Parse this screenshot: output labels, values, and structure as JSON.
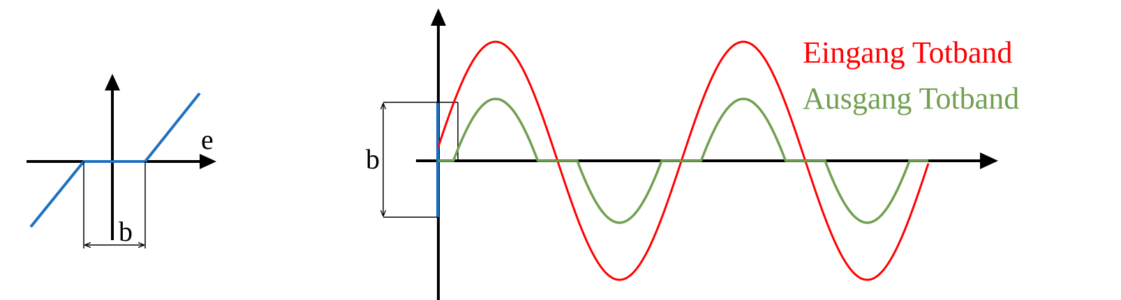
{
  "left_diagram": {
    "axis_label": "e",
    "band_label": "b"
  },
  "right_diagram": {
    "band_label": "b",
    "legend": {
      "input_label": "Eingang Totband",
      "output_label": "Ausgang Totband"
    }
  },
  "colors": {
    "input_curve": "#ff0000",
    "output_curve": "#70a050",
    "characteristic": "#1f70c1",
    "axis": "#000000"
  }
}
